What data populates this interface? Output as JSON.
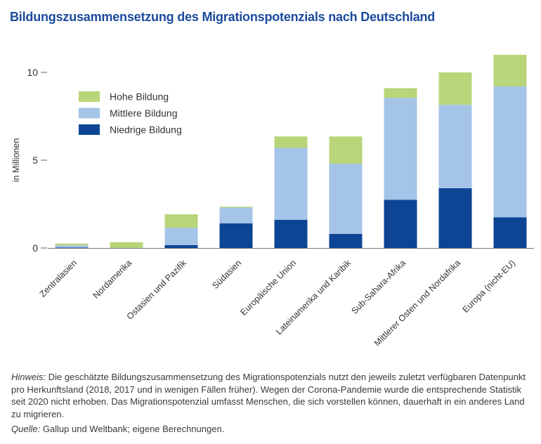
{
  "title": "Bildungszusammensetzung des Migrationspotenzials nach Deutschland",
  "chart_data": {
    "type": "bar",
    "stacked": true,
    "ylabel": "in Millionen",
    "ylim": [
      0,
      11
    ],
    "yticks": [
      0,
      5,
      10
    ],
    "grid": false,
    "legend_position": "top-left",
    "categories": [
      "Zentralasien",
      "Nordamerika",
      "Ostasien und Pazifik",
      "Südasien",
      "Europäische Union",
      "Lateinamerika und Karibik",
      "Sub-Sahara-Afrika",
      "Mittlerer Osten und Nordafrika",
      "Europa (nicht-EU)"
    ],
    "series": [
      {
        "name": "Niedrige Bildung",
        "color": "#0d4594",
        "values": [
          0.02,
          0.0,
          0.17,
          1.4,
          1.6,
          0.8,
          2.75,
          3.4,
          1.75
        ]
      },
      {
        "name": "Mittlere Bildung",
        "color": "#a4c4e8",
        "values": [
          0.13,
          0.0,
          0.98,
          0.9,
          4.1,
          4.0,
          5.8,
          4.75,
          7.45
        ]
      },
      {
        "name": "Hohe Bildung",
        "color": "#b8d57a",
        "values": [
          0.1,
          0.33,
          0.77,
          0.05,
          0.65,
          1.55,
          0.55,
          1.85,
          1.8
        ]
      }
    ]
  },
  "notes": {
    "hint_label": "Hinweis:",
    "hint_text": " Die geschätzte Bildungszusammensetzung des Migrationspotenzials nutzt den jeweils zuletzt verfügbaren Datenpunkt pro Herkunftsland (2018, 2017 und in wenigen Fällen früher). Wegen der Corona-Pandemie wurde die entsprechende Statistik seit 2020 nicht erhoben. Das Migrationspotenzial umfasst Menschen, die sich vorstellen können, dauerhaft in ein anderes Land zu migrieren.",
    "source_label": "Quelle:",
    "source_text": " Gallup und Weltbank; eigene Berechnungen."
  }
}
